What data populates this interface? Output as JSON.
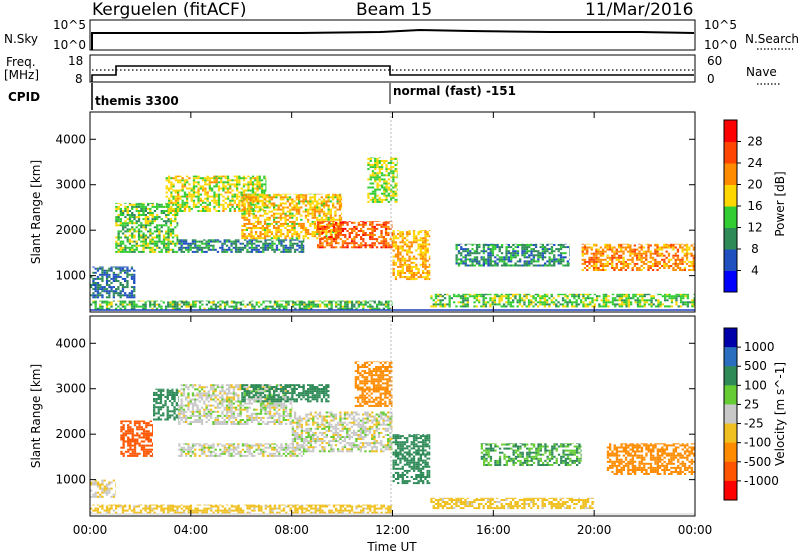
{
  "header": {
    "station": "Kerguelen (fitACF)",
    "beam": "Beam 15",
    "date": "11/Mar/2016"
  },
  "noise_panel": {
    "left_label": "N.Sky",
    "right_label": "N.Search",
    "left_ticks": [
      "10^5",
      "10^0"
    ],
    "right_ticks": [
      "10^5",
      "10^0"
    ]
  },
  "freq_panel": {
    "left_label_1": "Freq.",
    "left_label_2": "[MHz]",
    "right_label": "Nave",
    "left_ticks": [
      "18",
      "8"
    ],
    "right_ticks": [
      "60",
      "0"
    ],
    "cpid_label": "CPID"
  },
  "cpid_segments": [
    {
      "label": "themis 3300",
      "start_hour": 0
    },
    {
      "label": "normal (fast) -151",
      "start_hour": 12
    }
  ],
  "colors": {
    "power": [
      "#0000ff",
      "#2050c0",
      "#2e8b57",
      "#32cd32",
      "#ffd700",
      "#ff8c00",
      "#ff4500",
      "#ff0000"
    ],
    "velocity": [
      "#0000aa",
      "#2a6fbf",
      "#2e8b57",
      "#66cc33",
      "#c8c8c8",
      "#f0c020",
      "#ff8c00",
      "#ff5500",
      "#ff0000"
    ]
  },
  "chart_data": [
    {
      "type": "heatmap",
      "title": "",
      "xlabel": "",
      "ylabel": "Slant Range [km]",
      "x_ticks": [
        "00:00",
        "04:00",
        "08:00",
        "12:00",
        "16:00",
        "20:00",
        "00:00"
      ],
      "xlim_hours": [
        0,
        24
      ],
      "y_ticks": [
        "1000",
        "2000",
        "3000",
        "4000"
      ],
      "ylim_km": [
        200,
        4600
      ],
      "colorbar_label": "Power [dB]",
      "colorbar_ticks": [
        "4",
        "8",
        "12",
        "16",
        "20",
        "24",
        "28"
      ],
      "colorbar_range": [
        0,
        32
      ],
      "echo_regions": [
        {
          "t_start": 0.0,
          "t_end": 1.8,
          "r_start": 500,
          "r_end": 1200,
          "value": 8
        },
        {
          "t_start": 1.0,
          "t_end": 3.5,
          "r_start": 1500,
          "r_end": 2600,
          "value": 14
        },
        {
          "t_start": 3.0,
          "t_end": 7.0,
          "r_start": 2400,
          "r_end": 3200,
          "value": 17
        },
        {
          "t_start": 3.5,
          "t_end": 8.5,
          "r_start": 1500,
          "r_end": 1800,
          "value": 9
        },
        {
          "t_start": 6.0,
          "t_end": 10.0,
          "r_start": 1800,
          "r_end": 2800,
          "value": 19
        },
        {
          "t_start": 9.0,
          "t_end": 12.0,
          "r_start": 1600,
          "r_end": 2200,
          "value": 25
        },
        {
          "t_start": 11.0,
          "t_end": 12.2,
          "r_start": 2600,
          "r_end": 3600,
          "value": 16
        },
        {
          "t_start": 12.0,
          "t_end": 13.5,
          "r_start": 900,
          "r_end": 2000,
          "value": 20
        },
        {
          "t_start": 14.5,
          "t_end": 19.0,
          "r_start": 1200,
          "r_end": 1700,
          "value": 10
        },
        {
          "t_start": 13.5,
          "t_end": 24.0,
          "r_start": 300,
          "r_end": 600,
          "value": 14
        },
        {
          "t_start": 19.5,
          "t_end": 24.0,
          "r_start": 1100,
          "r_end": 1700,
          "value": 22
        },
        {
          "t_start": 0.0,
          "t_end": 12.0,
          "r_start": 250,
          "r_end": 450,
          "value": 13
        }
      ]
    },
    {
      "type": "heatmap",
      "title": "",
      "xlabel": "Time UT",
      "ylabel": "Slant Range [km]",
      "x_ticks": [
        "00:00",
        "04:00",
        "08:00",
        "12:00",
        "16:00",
        "20:00",
        "00:00"
      ],
      "xlim_hours": [
        0,
        24
      ],
      "y_ticks": [
        "1000",
        "2000",
        "3000",
        "4000"
      ],
      "ylim_km": [
        200,
        4600
      ],
      "colorbar_label": "Velocity [m s^-1]",
      "colorbar_ticks": [
        "1000",
        "500",
        "100",
        "25",
        "-25",
        "-100",
        "-500",
        "-1000"
      ],
      "echo_regions": [
        {
          "t_start": 0.0,
          "t_end": 1.0,
          "r_start": 600,
          "r_end": 1000,
          "value": -25
        },
        {
          "t_start": 1.2,
          "t_end": 2.5,
          "r_start": 1500,
          "r_end": 2300,
          "value": -600
        },
        {
          "t_start": 2.5,
          "t_end": 3.5,
          "r_start": 2300,
          "r_end": 3000,
          "value": 300
        },
        {
          "t_start": 3.5,
          "t_end": 8.0,
          "r_start": 2200,
          "r_end": 3100,
          "value": 0
        },
        {
          "t_start": 3.5,
          "t_end": 8.5,
          "r_start": 1500,
          "r_end": 1800,
          "value": 0
        },
        {
          "t_start": 6.0,
          "t_end": 9.5,
          "r_start": 2700,
          "r_end": 3100,
          "value": 300
        },
        {
          "t_start": 8.0,
          "t_end": 12.0,
          "r_start": 1600,
          "r_end": 2500,
          "value": 0
        },
        {
          "t_start": 10.5,
          "t_end": 12.0,
          "r_start": 2600,
          "r_end": 3600,
          "value": -300
        },
        {
          "t_start": 12.0,
          "t_end": 13.5,
          "r_start": 900,
          "r_end": 2000,
          "value": 200
        },
        {
          "t_start": 15.5,
          "t_end": 19.5,
          "r_start": 1300,
          "r_end": 1800,
          "value": 100
        },
        {
          "t_start": 13.5,
          "t_end": 20.0,
          "r_start": 350,
          "r_end": 600,
          "value": -60
        },
        {
          "t_start": 20.5,
          "t_end": 24.0,
          "r_start": 1100,
          "r_end": 1800,
          "value": -300
        },
        {
          "t_start": 0.0,
          "t_end": 12.0,
          "r_start": 250,
          "r_end": 450,
          "value": -60
        }
      ]
    }
  ]
}
